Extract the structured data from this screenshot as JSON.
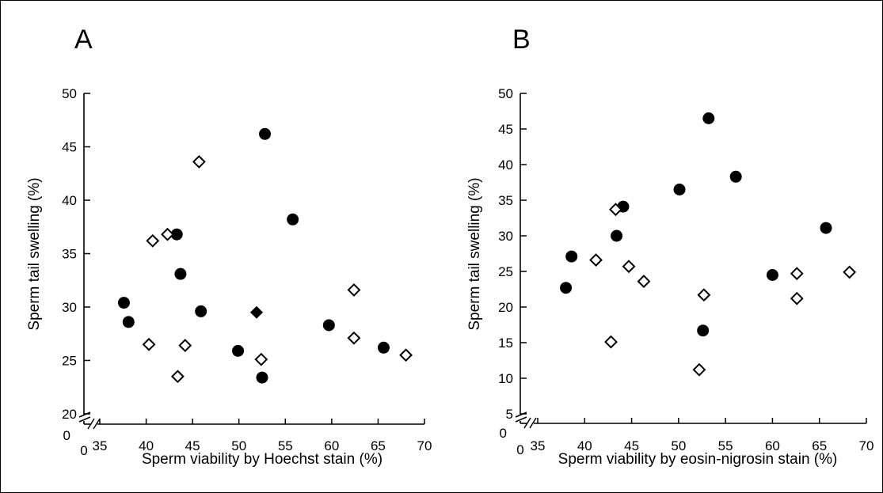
{
  "chart_data": [
    {
      "type": "scatter",
      "panel_label": "A",
      "xlabel": "Sperm viability by Hoechst stain (%)",
      "ylabel": "Sperm tail swelling (%)",
      "xlim": [
        35,
        70
      ],
      "ylim": [
        20,
        50
      ],
      "x_break": true,
      "y_break": true,
      "x_origin_label": "0",
      "y_origin_label": "0",
      "x_ticks": [
        35,
        40,
        45,
        50,
        55,
        60,
        65,
        70
      ],
      "y_ticks": [
        20,
        25,
        30,
        35,
        40,
        45,
        50
      ],
      "series": [
        {
          "marker": "filled-circle",
          "points": [
            {
              "x": 37.6,
              "y": 30.4
            },
            {
              "x": 38.1,
              "y": 28.6
            },
            {
              "x": 43.3,
              "y": 36.8
            },
            {
              "x": 43.7,
              "y": 33.1
            },
            {
              "x": 45.9,
              "y": 29.6
            },
            {
              "x": 49.9,
              "y": 25.9
            },
            {
              "x": 52.5,
              "y": 23.4
            },
            {
              "x": 52.8,
              "y": 46.2
            },
            {
              "x": 55.8,
              "y": 38.2
            },
            {
              "x": 59.7,
              "y": 28.3
            },
            {
              "x": 65.6,
              "y": 26.2
            }
          ]
        },
        {
          "marker": "open-diamond",
          "points": [
            {
              "x": 40.3,
              "y": 26.5
            },
            {
              "x": 40.7,
              "y": 36.2
            },
            {
              "x": 42.3,
              "y": 36.8
            },
            {
              "x": 43.4,
              "y": 23.5
            },
            {
              "x": 44.2,
              "y": 26.4
            },
            {
              "x": 45.7,
              "y": 43.6
            },
            {
              "x": 52.4,
              "y": 25.1
            },
            {
              "x": 62.4,
              "y": 31.6
            },
            {
              "x": 62.4,
              "y": 27.1
            },
            {
              "x": 68.0,
              "y": 25.5
            }
          ]
        },
        {
          "marker": "filled-diamond",
          "points": [
            {
              "x": 51.9,
              "y": 29.5
            }
          ]
        }
      ]
    },
    {
      "type": "scatter",
      "panel_label": "B",
      "xlabel": "Sperm viability by eosin-nigrosin stain (%)",
      "ylabel": "Sperm tail swelling (%)",
      "xlim": [
        35,
        70
      ],
      "ylim": [
        5,
        50
      ],
      "x_break": true,
      "y_break": true,
      "x_origin_label": "0",
      "y_origin_label": "0",
      "x_ticks": [
        35,
        40,
        45,
        50,
        55,
        60,
        65,
        70
      ],
      "y_ticks": [
        5,
        10,
        15,
        20,
        25,
        30,
        35,
        40,
        45,
        50
      ],
      "series": [
        {
          "marker": "filled-circle",
          "points": [
            {
              "x": 38.0,
              "y": 22.7
            },
            {
              "x": 38.6,
              "y": 27.1
            },
            {
              "x": 43.4,
              "y": 30.0
            },
            {
              "x": 44.1,
              "y": 34.1
            },
            {
              "x": 50.1,
              "y": 36.5
            },
            {
              "x": 52.6,
              "y": 16.7
            },
            {
              "x": 53.2,
              "y": 46.5
            },
            {
              "x": 56.1,
              "y": 38.3
            },
            {
              "x": 60.0,
              "y": 24.5
            },
            {
              "x": 65.7,
              "y": 31.1
            }
          ]
        },
        {
          "marker": "open-diamond",
          "points": [
            {
              "x": 41.2,
              "y": 26.6
            },
            {
              "x": 42.8,
              "y": 15.1
            },
            {
              "x": 43.3,
              "y": 33.7
            },
            {
              "x": 44.7,
              "y": 25.7
            },
            {
              "x": 46.3,
              "y": 23.6
            },
            {
              "x": 52.2,
              "y": 11.2
            },
            {
              "x": 52.7,
              "y": 21.7
            },
            {
              "x": 62.6,
              "y": 24.7
            },
            {
              "x": 62.6,
              "y": 21.2
            },
            {
              "x": 68.2,
              "y": 24.9
            }
          ]
        }
      ]
    }
  ]
}
